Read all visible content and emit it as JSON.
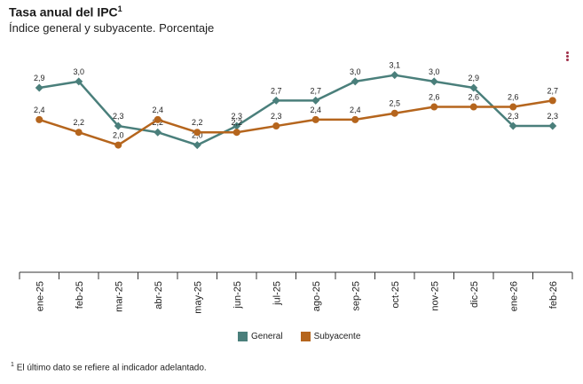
{
  "header": {
    "title": "Tasa anual del IPC",
    "title_sup": "1",
    "subtitle": "Índice general y subyacente. Porcentaje"
  },
  "menu_icon": "kebab-menu-icon",
  "chart_data": {
    "type": "line",
    "title": "Tasa anual del IPC",
    "categories": [
      "ene-25",
      "feb-25",
      "mar-25",
      "abr-25",
      "may-25",
      "jun-25",
      "jul-25",
      "ago-25",
      "sep-25",
      "oct-25",
      "nov-25",
      "dic-25",
      "ene-26",
      "feb-26"
    ],
    "series": [
      {
        "name": "General",
        "color": "#4a7f7b",
        "marker": "diamond",
        "values": [
          2.9,
          3.0,
          2.3,
          2.2,
          2.0,
          2.3,
          2.7,
          2.7,
          3.0,
          3.1,
          3.0,
          2.9,
          2.3,
          2.3
        ],
        "labels": [
          "2,9",
          "3,0",
          "2,3",
          "2,2",
          "2,0",
          "2,3",
          "2,7",
          "2,7",
          "3,0",
          "3,1",
          "3,0",
          "2,9",
          "2,3",
          "2,3"
        ]
      },
      {
        "name": "Subyacente",
        "color": "#b5651d",
        "marker": "circle",
        "values": [
          2.4,
          2.2,
          2.0,
          2.4,
          2.2,
          2.2,
          2.3,
          2.4,
          2.4,
          2.5,
          2.6,
          2.6,
          2.6,
          2.7
        ],
        "labels": [
          "2,4",
          "2,2",
          "2,0",
          "2,4",
          "2,2",
          "2,2",
          "2,3",
          "2,4",
          "2,4",
          "2,5",
          "2,6",
          "2,6",
          "2,6",
          "2,7"
        ]
      }
    ],
    "ylim": [
      0,
      3.5
    ],
    "grid": false,
    "legend_position": "bottom-center"
  },
  "footnote": {
    "sup": "1",
    "text": "El último dato se refiere al indicador adelantado."
  }
}
